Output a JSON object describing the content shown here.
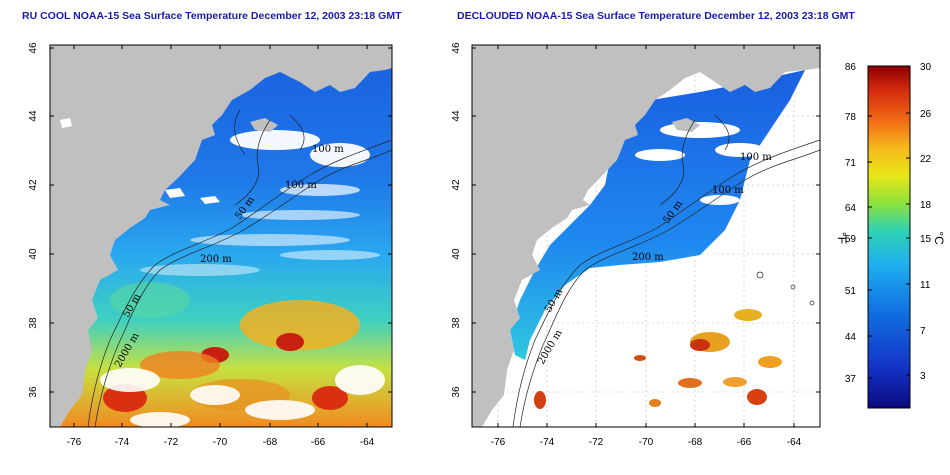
{
  "panels": [
    {
      "title": "RU COOL NOAA-15 Sea Surface Temperature December 12, 2003 23:18 GMT",
      "x_ticks": [
        "-76",
        "-74",
        "-72",
        "-70",
        "-68",
        "-66",
        "-64"
      ],
      "y_ticks": [
        "46",
        "44",
        "42",
        "40",
        "38",
        "36"
      ],
      "contour_labels": [
        "100 m",
        "100 m",
        "50 m",
        "200 m",
        "50 m",
        "2000 m"
      ]
    },
    {
      "title": "DECLOUDED NOAA-15 Sea Surface Temperature December 12, 2003 23:18 GMT",
      "x_ticks": [
        "-76",
        "-74",
        "-72",
        "-70",
        "-68",
        "-66",
        "-64"
      ],
      "y_ticks": [
        "46",
        "44",
        "42",
        "40",
        "38",
        "36"
      ],
      "contour_labels": [
        "100 m",
        "100 m",
        "50 m",
        "200 m",
        "50 m",
        "2000 m"
      ]
    }
  ],
  "colorbar": {
    "fahrenheit_labels": [
      "86",
      "78",
      "71",
      "64",
      "59",
      "51",
      "44",
      "37"
    ],
    "celsius_labels": [
      "30",
      "26",
      "22",
      "18",
      "15",
      "11",
      "7",
      "3"
    ],
    "fahrenheit_unit": "°F",
    "celsius_unit": "°C",
    "colors": [
      "#8b0000",
      "#d42a0e",
      "#f26b16",
      "#f6b81c",
      "#e8e818",
      "#8fe23a",
      "#2fd3b0",
      "#1fb0f0",
      "#1070e0",
      "#1434c8",
      "#0a0a80"
    ]
  },
  "colors": {
    "land": "#c0c0c0",
    "cloud": "#ffffff",
    "title": "#1a1ab0"
  }
}
